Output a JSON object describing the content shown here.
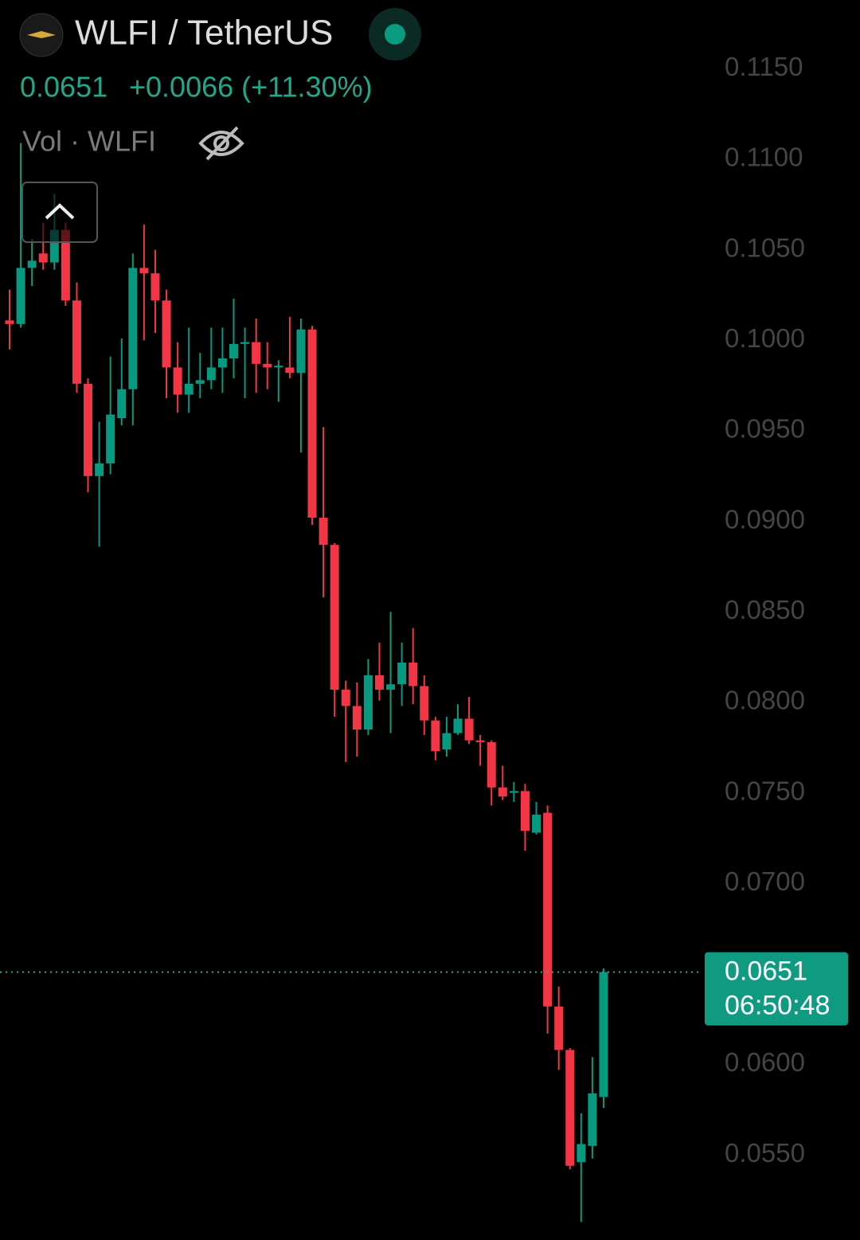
{
  "header": {
    "symbol": "WLFI / TetherUS",
    "price": "0.0651",
    "change": "+0.0066 (+11.30%)",
    "volume_label": "Vol · WLFI"
  },
  "chart_data": {
    "type": "candlestick",
    "open": [
      0.1011,
      0.1009,
      0.104,
      0.1048,
      0.1043,
      0.1061,
      0.1022,
      0.0976,
      0.0925,
      0.0932,
      0.0957,
      0.0973,
      0.104,
      0.1037,
      0.1022,
      0.0985,
      0.097,
      0.0976,
      0.0978,
      0.0985,
      0.099,
      0.0998,
      0.0999,
      0.0987,
      0.0985,
      0.0985,
      0.0982,
      0.1006,
      0.0902,
      0.0887,
      0.0807,
      0.0798,
      0.0785,
      0.0815,
      0.0807,
      0.081,
      0.0822,
      0.0809,
      0.079,
      0.0774,
      0.0783,
      0.0791,
      0.0779,
      0.0778,
      0.0753,
      0.075,
      0.0751,
      0.0728,
      0.0739,
      0.0632,
      0.0608,
      0.0546,
      0.0555,
      0.0582
    ],
    "high": [
      0.1028,
      0.1109,
      0.1056,
      0.1065,
      0.1081,
      0.1065,
      0.1032,
      0.0979,
      0.0955,
      0.0991,
      0.1001,
      0.1048,
      0.1064,
      0.105,
      0.1028,
      0.0999,
      0.1007,
      0.0993,
      0.1007,
      0.1007,
      0.1023,
      0.1007,
      0.1012,
      0.0999,
      0.0989,
      0.1013,
      0.1012,
      0.1008,
      0.0952,
      0.0888,
      0.0812,
      0.0811,
      0.0824,
      0.0833,
      0.085,
      0.0833,
      0.0841,
      0.0815,
      0.0792,
      0.0792,
      0.0799,
      0.0803,
      0.0782,
      0.0779,
      0.0765,
      0.0756,
      0.0755,
      0.0745,
      0.0743,
      0.0643,
      0.0609,
      0.0573,
      0.0604,
      0.0653
    ],
    "low": [
      0.0995,
      0.1007,
      0.103,
      0.1039,
      0.1039,
      0.1019,
      0.0971,
      0.0916,
      0.0886,
      0.0926,
      0.0953,
      0.0953,
      0.1,
      0.1004,
      0.0968,
      0.096,
      0.096,
      0.0968,
      0.0973,
      0.0971,
      0.0979,
      0.0968,
      0.0971,
      0.0973,
      0.0966,
      0.0979,
      0.0938,
      0.0898,
      0.0858,
      0.0792,
      0.0767,
      0.077,
      0.0782,
      0.0801,
      0.0783,
      0.0798,
      0.0799,
      0.0782,
      0.0768,
      0.077,
      0.0782,
      0.0777,
      0.0765,
      0.0743,
      0.0746,
      0.0745,
      0.0718,
      0.0727,
      0.0617,
      0.0597,
      0.0542,
      0.0513,
      0.0548,
      0.0576
    ],
    "close": [
      0.1009,
      0.104,
      0.1044,
      0.1043,
      0.1061,
      0.1022,
      0.0976,
      0.0925,
      0.0932,
      0.0959,
      0.0973,
      0.104,
      0.1037,
      0.1022,
      0.0985,
      0.097,
      0.0976,
      0.0978,
      0.0985,
      0.099,
      0.0998,
      0.0999,
      0.0987,
      0.0985,
      0.0986,
      0.0982,
      0.1006,
      0.0902,
      0.0887,
      0.0807,
      0.0798,
      0.0785,
      0.0815,
      0.0807,
      0.081,
      0.0822,
      0.0809,
      0.079,
      0.0773,
      0.0783,
      0.0791,
      0.0779,
      0.0778,
      0.0753,
      0.0748,
      0.0751,
      0.0729,
      0.0738,
      0.0632,
      0.0608,
      0.0544,
      0.0556,
      0.0584,
      0.0651
    ],
    "up_color": "#089981",
    "down_color": "#f23645",
    "ylim": [
      0.0503,
      0.1188
    ],
    "yticks": [
      {
        "value": 0.055,
        "label": "0.0550"
      },
      {
        "value": 0.06,
        "label": "0.0600"
      },
      {
        "value": 0.07,
        "label": "0.0700"
      },
      {
        "value": 0.075,
        "label": "0.0750"
      },
      {
        "value": 0.08,
        "label": "0.0800"
      },
      {
        "value": 0.085,
        "label": "0.0850"
      },
      {
        "value": 0.09,
        "label": "0.0900"
      },
      {
        "value": 0.095,
        "label": "0.0950"
      },
      {
        "value": 0.1,
        "label": "0.1000"
      },
      {
        "value": 0.105,
        "label": "0.1050"
      },
      {
        "value": 0.11,
        "label": "0.1100"
      },
      {
        "value": 0.115,
        "label": "0.1150"
      }
    ],
    "grid": false,
    "last_price": 0.0651,
    "countdown": "06:50:48"
  }
}
